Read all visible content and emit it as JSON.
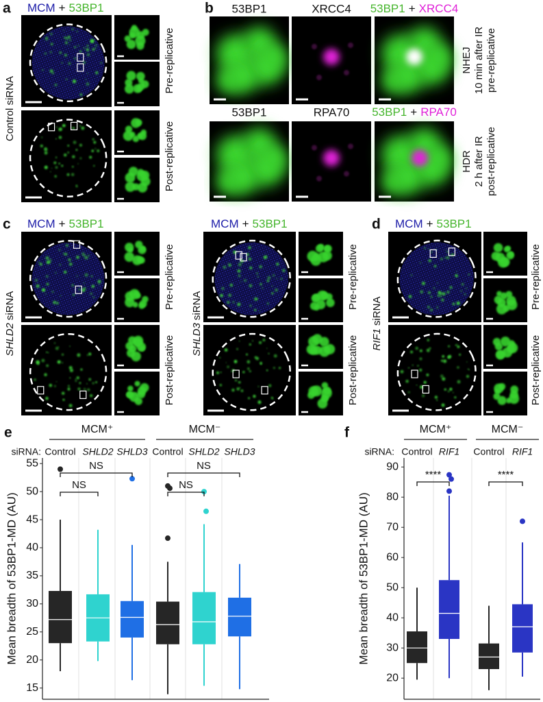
{
  "panel_a": {
    "letter": "a",
    "header": {
      "left": "MCM",
      "plus": "+",
      "right": "53BP1"
    },
    "condition": "Control siRNA",
    "rows": [
      "Pre-replicative",
      "Post-replicative"
    ]
  },
  "panel_b": {
    "letter": "b",
    "rows": [
      {
        "stain_1": "53BP1",
        "stain_2": "XRCC4",
        "merge": {
          "left": "53BP1",
          "plus": "+",
          "right": "XRCC4"
        },
        "side": [
          "NHEJ",
          "10 min after IR",
          "pre-replicative"
        ]
      },
      {
        "stain_1": "53BP1",
        "stain_2": "RPA70",
        "merge": {
          "left": "53BP1",
          "plus": "+",
          "right": "RPA70"
        },
        "side": [
          "HDR",
          "2 h after IR",
          "post-replicative"
        ]
      }
    ]
  },
  "panel_c": {
    "letter": "c",
    "experiments": [
      {
        "header": {
          "left": "MCM",
          "plus": "+",
          "right": "53BP1"
        },
        "gene": "SHLD2",
        "sirna": "siRNA",
        "rows": [
          "Pre-replicative",
          "Post-replicative"
        ]
      },
      {
        "header": {
          "left": "MCM",
          "plus": "+",
          "right": "53BP1"
        },
        "gene": "SHLD3",
        "sirna": "siRNA",
        "rows": [
          "Pre-replicative",
          "Post-replicative"
        ]
      }
    ]
  },
  "panel_d": {
    "letter": "d",
    "header": {
      "left": "MCM",
      "plus": "+",
      "right": "53BP1"
    },
    "gene": "RIF1",
    "sirna": "siRNA",
    "rows": [
      "Pre-replicative",
      "Post-replicative"
    ]
  },
  "chart_data": [
    {
      "type": "box",
      "panel_label": "e",
      "ylabel": "Mean breadth of 53BP1-MD (AU)",
      "row_label": "siRNA:",
      "ylim": [
        13,
        56
      ],
      "yticks": [
        15,
        20,
        25,
        30,
        35,
        40,
        45,
        50,
        55
      ],
      "groups": [
        {
          "label": "MCM⁺",
          "boxes": [
            {
              "category": "Control",
              "italic": false,
              "color": "#262626",
              "min": 18,
              "q1": 23,
              "median": 27.2,
              "q3": 32.3,
              "max": 45,
              "outliers": [
                54
              ]
            },
            {
              "category": "SHLD2",
              "italic": true,
              "color": "#2fd3cf",
              "min": 19.8,
              "q1": 23.3,
              "median": 27.5,
              "q3": 31.7,
              "max": 43.2,
              "outliers": []
            },
            {
              "category": "SHLD3",
              "italic": true,
              "color": "#1f6fe5",
              "min": 16.4,
              "q1": 24,
              "median": 27.6,
              "q3": 30.5,
              "max": 40.5,
              "outliers": [
                52.3
              ]
            }
          ]
        },
        {
          "label": "MCM⁻",
          "boxes": [
            {
              "category": "Control",
              "italic": false,
              "color": "#262626",
              "min": 13.9,
              "q1": 22.8,
              "median": 26.3,
              "q3": 30.4,
              "max": 37.5,
              "outliers": [
                51,
                50.6,
                41.7
              ]
            },
            {
              "category": "SHLD2",
              "italic": true,
              "color": "#2fd3cf",
              "min": 15.4,
              "q1": 22.8,
              "median": 26.8,
              "q3": 32.1,
              "max": 44.2,
              "outliers": [
                50,
                46.5
              ]
            },
            {
              "category": "SHLD3",
              "italic": true,
              "color": "#1f6fe5",
              "min": 14.8,
              "q1": 24.2,
              "median": 27.8,
              "q3": 31.1,
              "max": 37.1,
              "outliers": []
            }
          ]
        }
      ],
      "comparisons": [
        {
          "label": "NS",
          "pair": [
            0,
            2
          ]
        },
        {
          "label": "NS",
          "pair": [
            0,
            1
          ]
        },
        {
          "label": "NS",
          "pair": [
            3,
            5
          ]
        },
        {
          "label": "NS",
          "pair": [
            3,
            4
          ]
        }
      ]
    },
    {
      "type": "box",
      "panel_label": "f",
      "ylabel": "Mean breadth of 53BP1-MD (AU)",
      "row_label": "siRNA:",
      "ylim": [
        13,
        93
      ],
      "yticks": [
        20,
        30,
        40,
        50,
        60,
        70,
        80,
        90
      ],
      "groups": [
        {
          "label": "MCM⁺",
          "boxes": [
            {
              "category": "Control",
              "italic": false,
              "color": "#262626",
              "min": 19.5,
              "q1": 25,
              "median": 30,
              "q3": 35.5,
              "max": 50,
              "outliers": []
            },
            {
              "category": "RIF1",
              "italic": true,
              "color": "#2a35c4",
              "min": 20,
              "q1": 33,
              "median": 41.5,
              "q3": 52.5,
              "max": 80.5,
              "outliers": [
                87.4,
                86,
                82
              ]
            }
          ]
        },
        {
          "label": "MCM⁻",
          "boxes": [
            {
              "category": "Control",
              "italic": false,
              "color": "#262626",
              "min": 16,
              "q1": 23,
              "median": 27,
              "q3": 31.5,
              "max": 44,
              "outliers": []
            },
            {
              "category": "RIF1",
              "italic": true,
              "color": "#2a35c4",
              "min": 20.5,
              "q1": 28.5,
              "median": 37,
              "q3": 44.5,
              "max": 65,
              "outliers": [
                72
              ]
            }
          ]
        }
      ],
      "comparisons": [
        {
          "label": "****",
          "pair": [
            0,
            1
          ]
        },
        {
          "label": "****",
          "pair": [
            2,
            3
          ]
        }
      ]
    }
  ]
}
